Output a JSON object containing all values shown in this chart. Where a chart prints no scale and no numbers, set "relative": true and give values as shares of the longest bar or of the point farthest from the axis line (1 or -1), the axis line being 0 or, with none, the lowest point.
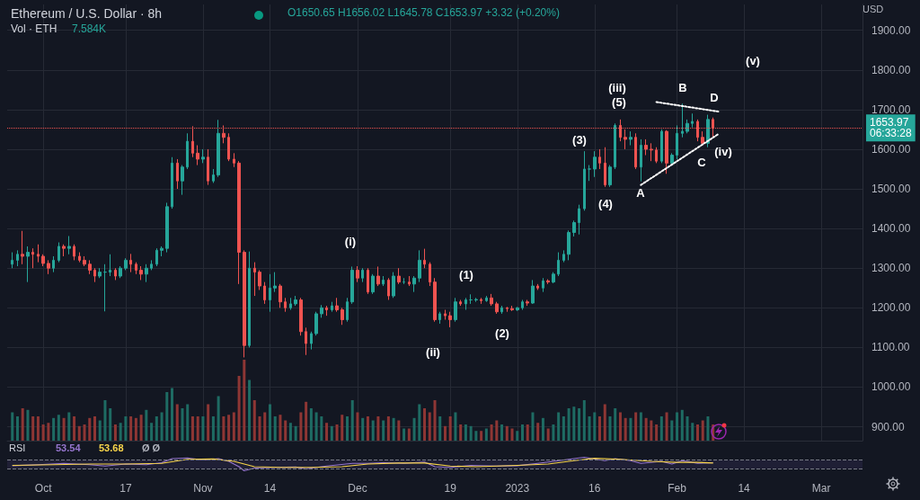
{
  "chart_data": [
    {
      "type": "candlestick",
      "title": "Ethereum / U.S. Dollar · 8h",
      "subtitle": "O1650.65 H1656.02 L1645.78 C1653.97 +3.32 (+0.20%)",
      "ylabel": "USD",
      "grid": true,
      "tick_labels": "y",
      "xlim": [
        "2022-09-24",
        "2023-03-09"
      ],
      "xticks": [
        {
          "value": "2022-10-01",
          "label": null
        },
        {
          "value": "2022-10-17",
          "label": null
        },
        {
          "value": "2022-11-01",
          "label": null
        },
        {
          "value": "2022-11-14",
          "label": null
        },
        {
          "value": "2022-12-01",
          "label": null
        },
        {
          "value": "2022-12-19",
          "label": null
        },
        {
          "value": "2023-01-01",
          "label": null
        },
        {
          "value": "2023-01-16",
          "label": null
        },
        {
          "value": "2023-02-01",
          "label": null
        },
        {
          "value": "2023-02-14",
          "label": null
        },
        {
          "value": "2023-03-01",
          "label": null
        }
      ],
      "ylim": [
        865,
        1965
      ],
      "yticks": [
        {
          "value": 900,
          "label": "900.00"
        },
        {
          "value": 1000,
          "label": "1000.00"
        },
        {
          "value": 1100,
          "label": "1100.00"
        },
        {
          "value": 1200,
          "label": "1200.00"
        },
        {
          "value": 1300,
          "label": "1300.00"
        },
        {
          "value": 1400,
          "label": "1400.00"
        },
        {
          "value": 1500,
          "label": "1500.00"
        },
        {
          "value": 1600,
          "label": "1600.00"
        },
        {
          "value": 1700,
          "label": "1700.00"
        },
        {
          "value": 1800,
          "label": "1800.00"
        },
        {
          "value": 1900,
          "label": "1900.00"
        }
      ],
      "x": [
        "2022-09-25",
        "2022-09-26",
        "2022-09-27",
        "2022-09-28",
        "2022-09-29",
        "2022-09-30",
        "2022-10-01",
        "2022-10-02",
        "2022-10-03",
        "2022-10-04",
        "2022-10-05",
        "2022-10-06",
        "2022-10-07",
        "2022-10-08",
        "2022-10-09",
        "2022-10-10",
        "2022-10-11",
        "2022-10-12",
        "2022-10-13",
        "2022-10-14",
        "2022-10-15",
        "2022-10-16",
        "2022-10-17",
        "2022-10-18",
        "2022-10-19",
        "2022-10-20",
        "2022-10-21",
        "2022-10-22",
        "2022-10-23",
        "2022-10-24",
        "2022-10-25",
        "2022-10-26",
        "2022-10-27",
        "2022-10-28",
        "2022-10-29",
        "2022-10-30",
        "2022-10-31",
        "2022-11-01",
        "2022-11-02",
        "2022-11-03",
        "2022-11-04",
        "2022-11-05",
        "2022-11-06",
        "2022-11-07",
        "2022-11-08",
        "2022-11-09",
        "2022-11-10",
        "2022-11-11",
        "2022-11-12",
        "2022-11-13",
        "2022-11-14",
        "2022-11-15",
        "2022-11-16",
        "2022-11-17",
        "2022-11-18",
        "2022-11-19",
        "2022-11-20",
        "2022-11-21",
        "2022-11-22",
        "2022-11-23",
        "2022-11-24",
        "2022-11-25",
        "2022-11-26",
        "2022-11-27",
        "2022-11-28",
        "2022-11-29",
        "2022-11-30",
        "2022-12-01",
        "2022-12-02",
        "2022-12-03",
        "2022-12-04",
        "2022-12-05",
        "2022-12-06",
        "2022-12-07",
        "2022-12-08",
        "2022-12-09",
        "2022-12-10",
        "2022-12-11",
        "2022-12-12",
        "2022-12-13",
        "2022-12-14",
        "2022-12-15",
        "2022-12-16",
        "2022-12-17",
        "2022-12-18",
        "2022-12-19",
        "2022-12-20",
        "2022-12-21",
        "2022-12-22",
        "2022-12-23",
        "2022-12-24",
        "2022-12-25",
        "2022-12-26",
        "2022-12-27",
        "2022-12-28",
        "2022-12-29",
        "2022-12-30",
        "2022-12-31",
        "2023-01-01",
        "2023-01-02",
        "2023-01-03",
        "2023-01-04",
        "2023-01-05",
        "2023-01-06",
        "2023-01-07",
        "2023-01-08",
        "2023-01-09",
        "2023-01-10",
        "2023-01-11",
        "2023-01-12",
        "2023-01-13",
        "2023-01-14",
        "2023-01-15",
        "2023-01-16",
        "2023-01-17",
        "2023-01-18",
        "2023-01-19",
        "2023-01-20",
        "2023-01-21",
        "2023-01-22",
        "2023-01-23",
        "2023-01-24",
        "2023-01-25",
        "2023-01-26",
        "2023-01-27",
        "2023-01-28",
        "2023-01-29",
        "2023-01-30",
        "2023-01-31",
        "2023-02-01",
        "2023-02-02",
        "2023-02-03",
        "2023-02-04",
        "2023-02-05",
        "2023-02-06",
        "2023-02-07",
        "2023-02-08"
      ],
      "ohlc": [
        [
          1310,
          1340,
          1300,
          1320
        ],
        [
          1320,
          1345,
          1305,
          1335
        ],
        [
          1335,
          1394,
          1310,
          1330
        ],
        [
          1330,
          1355,
          1265,
          1340
        ],
        [
          1340,
          1350,
          1300,
          1335
        ],
        [
          1335,
          1360,
          1315,
          1330
        ],
        [
          1330,
          1335,
          1305,
          1312
        ],
        [
          1312,
          1320,
          1285,
          1300
        ],
        [
          1300,
          1330,
          1290,
          1320
        ],
        [
          1320,
          1365,
          1315,
          1355
        ],
        [
          1355,
          1360,
          1330,
          1350
        ],
        [
          1350,
          1381,
          1335,
          1355
        ],
        [
          1355,
          1360,
          1320,
          1330
        ],
        [
          1330,
          1340,
          1315,
          1320
        ],
        [
          1320,
          1330,
          1305,
          1310
        ],
        [
          1310,
          1320,
          1285,
          1295
        ],
        [
          1295,
          1300,
          1265,
          1280
        ],
        [
          1280,
          1300,
          1275,
          1290
        ],
        [
          1290,
          1310,
          1191,
          1290
        ],
        [
          1290,
          1335,
          1280,
          1295
        ],
        [
          1295,
          1300,
          1270,
          1280
        ],
        [
          1280,
          1305,
          1275,
          1300
        ],
        [
          1300,
          1325,
          1295,
          1320
        ],
        [
          1320,
          1336,
          1290,
          1310
        ],
        [
          1310,
          1315,
          1285,
          1295
        ],
        [
          1295,
          1305,
          1270,
          1285
        ],
        [
          1285,
          1310,
          1265,
          1300
        ],
        [
          1300,
          1320,
          1295,
          1310
        ],
        [
          1310,
          1350,
          1305,
          1345
        ],
        [
          1345,
          1355,
          1330,
          1350
        ],
        [
          1350,
          1465,
          1340,
          1455
        ],
        [
          1455,
          1580,
          1450,
          1565
        ],
        [
          1565,
          1575,
          1500,
          1520
        ],
        [
          1520,
          1560,
          1485,
          1555
        ],
        [
          1555,
          1640,
          1550,
          1620
        ],
        [
          1620,
          1658,
          1580,
          1590
        ],
        [
          1590,
          1610,
          1560,
          1575
        ],
        [
          1575,
          1600,
          1565,
          1580
        ],
        [
          1580,
          1600,
          1510,
          1520
        ],
        [
          1520,
          1550,
          1515,
          1535
        ],
        [
          1535,
          1674,
          1530,
          1640
        ],
        [
          1640,
          1660,
          1615,
          1630
        ],
        [
          1630,
          1640,
          1570,
          1575
        ],
        [
          1575,
          1590,
          1555,
          1565
        ],
        [
          1565,
          1570,
          1260,
          1340
        ],
        [
          1340,
          1345,
          1075,
          1105
        ],
        [
          1105,
          1342,
          1100,
          1300
        ],
        [
          1300,
          1315,
          1230,
          1290
        ],
        [
          1290,
          1295,
          1245,
          1255
        ],
        [
          1255,
          1265,
          1210,
          1220
        ],
        [
          1220,
          1285,
          1190,
          1250
        ],
        [
          1250,
          1290,
          1240,
          1255
        ],
        [
          1255,
          1260,
          1200,
          1215
        ],
        [
          1215,
          1225,
          1190,
          1200
        ],
        [
          1200,
          1225,
          1195,
          1210
        ],
        [
          1210,
          1230,
          1205,
          1220
        ],
        [
          1220,
          1225,
          1130,
          1140
        ],
        [
          1140,
          1150,
          1081,
          1110
        ],
        [
          1110,
          1140,
          1095,
          1135
        ],
        [
          1135,
          1190,
          1130,
          1185
        ],
        [
          1185,
          1207,
          1175,
          1200
        ],
        [
          1200,
          1205,
          1180,
          1195
        ],
        [
          1195,
          1215,
          1190,
          1205
        ],
        [
          1205,
          1225,
          1190,
          1195
        ],
        [
          1195,
          1200,
          1157,
          1170
        ],
        [
          1170,
          1225,
          1165,
          1215
        ],
        [
          1215,
          1304,
          1210,
          1295
        ],
        [
          1295,
          1305,
          1265,
          1275
        ],
        [
          1275,
          1300,
          1265,
          1295
        ],
        [
          1295,
          1300,
          1235,
          1240
        ],
        [
          1240,
          1285,
          1235,
          1280
        ],
        [
          1280,
          1304,
          1255,
          1260
        ],
        [
          1260,
          1280,
          1255,
          1270
        ],
        [
          1270,
          1275,
          1220,
          1230
        ],
        [
          1230,
          1290,
          1225,
          1280
        ],
        [
          1280,
          1300,
          1260,
          1265
        ],
        [
          1265,
          1275,
          1260,
          1265
        ],
        [
          1265,
          1280,
          1255,
          1260
        ],
        [
          1260,
          1280,
          1240,
          1275
        ],
        [
          1275,
          1345,
          1265,
          1320
        ],
        [
          1320,
          1349,
          1300,
          1310
        ],
        [
          1310,
          1315,
          1255,
          1265
        ],
        [
          1265,
          1275,
          1165,
          1170
        ],
        [
          1170,
          1190,
          1160,
          1185
        ],
        [
          1185,
          1195,
          1170,
          1180
        ],
        [
          1180,
          1190,
          1151,
          1170
        ],
        [
          1170,
          1225,
          1165,
          1215
        ],
        [
          1215,
          1220,
          1205,
          1210
        ],
        [
          1210,
          1225,
          1195,
          1220
        ],
        [
          1220,
          1234,
          1210,
          1220
        ],
        [
          1220,
          1225,
          1215,
          1221
        ],
        [
          1221,
          1225,
          1210,
          1218
        ],
        [
          1218,
          1230,
          1215,
          1225
        ],
        [
          1225,
          1235,
          1205,
          1210
        ],
        [
          1210,
          1215,
          1185,
          1190
        ],
        [
          1190,
          1205,
          1185,
          1200
        ],
        [
          1200,
          1202,
          1190,
          1198
        ],
        [
          1198,
          1205,
          1192,
          1195
        ],
        [
          1195,
          1202,
          1192,
          1200
        ],
        [
          1200,
          1220,
          1195,
          1215
        ],
        [
          1215,
          1220,
          1205,
          1212
        ],
        [
          1212,
          1270,
          1210,
          1255
        ],
        [
          1255,
          1260,
          1245,
          1250
        ],
        [
          1250,
          1275,
          1240,
          1268
        ],
        [
          1268,
          1272,
          1260,
          1265
        ],
        [
          1265,
          1290,
          1262,
          1285
        ],
        [
          1285,
          1340,
          1280,
          1320
        ],
        [
          1320,
          1345,
          1315,
          1335
        ],
        [
          1335,
          1395,
          1320,
          1390
        ],
        [
          1390,
          1420,
          1380,
          1415
        ],
        [
          1415,
          1460,
          1385,
          1450
        ],
        [
          1450,
          1595,
          1445,
          1550
        ],
        [
          1550,
          1560,
          1520,
          1550
        ],
        [
          1550,
          1595,
          1530,
          1580
        ],
        [
          1580,
          1600,
          1550,
          1565
        ],
        [
          1565,
          1605,
          1505,
          1510
        ],
        [
          1510,
          1560,
          1505,
          1555
        ],
        [
          1555,
          1665,
          1550,
          1660
        ],
        [
          1660,
          1675,
          1620,
          1630
        ],
        [
          1630,
          1650,
          1600,
          1625
        ],
        [
          1625,
          1645,
          1610,
          1630
        ],
        [
          1630,
          1640,
          1550,
          1555
        ],
        [
          1555,
          1625,
          1519,
          1610
        ],
        [
          1610,
          1625,
          1585,
          1600
        ],
        [
          1600,
          1615,
          1570,
          1598
        ],
        [
          1598,
          1605,
          1565,
          1570
        ],
        [
          1570,
          1650,
          1565,
          1645
        ],
        [
          1645,
          1648,
          1538,
          1565
        ],
        [
          1565,
          1590,
          1560,
          1585
        ],
        [
          1585,
          1660,
          1575,
          1640
        ],
        [
          1640,
          1715,
          1630,
          1645
        ],
        [
          1645,
          1675,
          1640,
          1665
        ],
        [
          1665,
          1690,
          1655,
          1670
        ],
        [
          1670,
          1675,
          1620,
          1630
        ],
        [
          1630,
          1645,
          1613,
          1615
        ],
        [
          1615,
          1687,
          1605,
          1675
        ],
        [
          1675,
          1680,
          1630,
          1653.97
        ]
      ],
      "colors": [
        "#26a69a",
        "#26a69a",
        "#ef5350",
        "#26a69a",
        "#ef5350",
        "#ef5350",
        "#ef5350",
        "#ef5350",
        "#26a69a",
        "#26a69a",
        "#ef5350",
        "#26a69a",
        "#ef5350",
        "#ef5350",
        "#ef5350",
        "#ef5350",
        "#ef5350",
        "#26a69a",
        "#26a69a",
        "#26a69a",
        "#ef5350",
        "#26a69a",
        "#26a69a",
        "#ef5350",
        "#ef5350",
        "#ef5350",
        "#26a69a",
        "#26a69a",
        "#26a69a",
        "#26a69a",
        "#26a69a",
        "#26a69a",
        "#ef5350",
        "#26a69a",
        "#26a69a",
        "#ef5350",
        "#ef5350",
        "#26a69a",
        "#ef5350",
        "#26a69a",
        "#26a69a",
        "#ef5350",
        "#ef5350",
        "#ef5350",
        "#ef5350",
        "#ef5350",
        "#26a69a",
        "#ef5350",
        "#ef5350",
        "#ef5350",
        "#26a69a",
        "#26a69a",
        "#ef5350",
        "#ef5350",
        "#26a69a",
        "#26a69a",
        "#ef5350",
        "#ef5350",
        "#26a69a",
        "#26a69a",
        "#26a69a",
        "#ef5350",
        "#26a69a",
        "#ef5350",
        "#ef5350",
        "#26a69a",
        "#26a69a",
        "#ef5350",
        "#26a69a",
        "#ef5350",
        "#26a69a",
        "#ef5350",
        "#26a69a",
        "#ef5350",
        "#26a69a",
        "#ef5350",
        "#26a69a",
        "#ef5350",
        "#26a69a",
        "#26a69a",
        "#ef5350",
        "#ef5350",
        "#ef5350",
        "#26a69a",
        "#ef5350",
        "#ef5350",
        "#26a69a",
        "#ef5350",
        "#26a69a",
        "#26a69a",
        "#26a69a",
        "#ef5350",
        "#26a69a",
        "#ef5350",
        "#ef5350",
        "#26a69a",
        "#ef5350",
        "#ef5350",
        "#26a69a",
        "#26a69a",
        "#ef5350",
        "#26a69a",
        "#ef5350",
        "#26a69a",
        "#ef5350",
        "#26a69a",
        "#26a69a",
        "#26a69a",
        "#26a69a",
        "#26a69a",
        "#26a69a",
        "#26a69a",
        "#26a69a",
        "#26a69a",
        "#ef5350",
        "#ef5350",
        "#26a69a",
        "#26a69a",
        "#ef5350",
        "#ef5350",
        "#26a69a",
        "#ef5350",
        "#26a69a",
        "#ef5350",
        "#ef5350",
        "#ef5350",
        "#26a69a",
        "#ef5350",
        "#26a69a",
        "#26a69a",
        "#26a69a",
        "#26a69a",
        "#26a69a",
        "#ef5350",
        "#ef5350",
        "#26a69a",
        "#ef5350"
      ],
      "series": [
        {
          "type": "line",
          "color": "#ffffff",
          "line_style": "dotted",
          "x": [
            "2023-01-28",
            "2023-02-09"
          ],
          "values": [
            1719,
            1695
          ]
        },
        {
          "type": "line",
          "color": "#ffffff",
          "line_style": "dotted",
          "x": [
            "2023-01-25",
            "2023-02-09"
          ],
          "values": [
            1510,
            1638
          ]
        }
      ],
      "ref_lines": [
        {
          "axis": "y",
          "value": 1653.97,
          "label": "1653.97\n06:33:28",
          "color": "#ef5350",
          "line_style": "dotted"
        }
      ],
      "annotations": [
        "(i)",
        "(ii)",
        "(1)",
        "(2)",
        "(3)",
        "(4)",
        "(iii)",
        "(5)",
        "A",
        "B",
        "C",
        "D",
        "(iv)",
        "(v)"
      ]
    },
    {
      "type": "bar",
      "relative": true,
      "title": "Vol · ETH",
      "annotations": [
        "7.584K"
      ],
      "tick_labels": false,
      "xlim": [
        "2022-09-24",
        "2023-03-09"
      ],
      "x": [
        "2022-09-25",
        "2022-09-26",
        "2022-09-27",
        "2022-09-28",
        "2022-09-29",
        "2022-09-30",
        "2022-10-01",
        "2022-10-02",
        "2022-10-03",
        "2022-10-04",
        "2022-10-05",
        "2022-10-06",
        "2022-10-07",
        "2022-10-08",
        "2022-10-09",
        "2022-10-10",
        "2022-10-11",
        "2022-10-12",
        "2022-10-13",
        "2022-10-14",
        "2022-10-15",
        "2022-10-16",
        "2022-10-17",
        "2022-10-18",
        "2022-10-19",
        "2022-10-20",
        "2022-10-21",
        "2022-10-22",
        "2022-10-23",
        "2022-10-24",
        "2022-10-25",
        "2022-10-26",
        "2022-10-27",
        "2022-10-28",
        "2022-10-29",
        "2022-10-30",
        "2022-10-31",
        "2022-11-01",
        "2022-11-02",
        "2022-11-03",
        "2022-11-04",
        "2022-11-05",
        "2022-11-06",
        "2022-11-07",
        "2022-11-08",
        "2022-11-09",
        "2022-11-10",
        "2022-11-11",
        "2022-11-12",
        "2022-11-13",
        "2022-11-14",
        "2022-11-15",
        "2022-11-16",
        "2022-11-17",
        "2022-11-18",
        "2022-11-19",
        "2022-11-20",
        "2022-11-21",
        "2022-11-22",
        "2022-11-23",
        "2022-11-24",
        "2022-11-25",
        "2022-11-26",
        "2022-11-27",
        "2022-11-28",
        "2022-11-29",
        "2022-11-30",
        "2022-12-01",
        "2022-12-02",
        "2022-12-03",
        "2022-12-04",
        "2022-12-05",
        "2022-12-06",
        "2022-12-07",
        "2022-12-08",
        "2022-12-09",
        "2022-12-10",
        "2022-12-11",
        "2022-12-12",
        "2022-12-13",
        "2022-12-14",
        "2022-12-15",
        "2022-12-16",
        "2022-12-17",
        "2022-12-18",
        "2022-12-19",
        "2022-12-20",
        "2022-12-21",
        "2022-12-22",
        "2022-12-23",
        "2022-12-24",
        "2022-12-25",
        "2022-12-26",
        "2022-12-27",
        "2022-12-28",
        "2022-12-29",
        "2022-12-30",
        "2022-12-31",
        "2023-01-01",
        "2023-01-02",
        "2023-01-03",
        "2023-01-04",
        "2023-01-05",
        "2023-01-06",
        "2023-01-07",
        "2023-01-08",
        "2023-01-09",
        "2023-01-10",
        "2023-01-11",
        "2023-01-12",
        "2023-01-13",
        "2023-01-14",
        "2023-01-15",
        "2023-01-16",
        "2023-01-17",
        "2023-01-18",
        "2023-01-19",
        "2023-01-20",
        "2023-01-21",
        "2023-01-22",
        "2023-01-23",
        "2023-01-24",
        "2023-01-25",
        "2023-01-26",
        "2023-01-27",
        "2023-01-28",
        "2023-01-29",
        "2023-01-30",
        "2023-01-31",
        "2023-02-01",
        "2023-02-02",
        "2023-02-03",
        "2023-02-04",
        "2023-02-05",
        "2023-02-06",
        "2023-02-07",
        "2023-02-08"
      ],
      "values": [
        0.35,
        0.3,
        0.4,
        0.38,
        0.3,
        0.3,
        0.2,
        0.22,
        0.28,
        0.32,
        0.28,
        0.35,
        0.3,
        0.18,
        0.2,
        0.28,
        0.3,
        0.25,
        0.5,
        0.4,
        0.2,
        0.22,
        0.3,
        0.3,
        0.28,
        0.32,
        0.38,
        0.22,
        0.3,
        0.35,
        0.6,
        0.65,
        0.45,
        0.4,
        0.45,
        0.3,
        0.3,
        0.3,
        0.45,
        0.3,
        0.55,
        0.3,
        0.32,
        0.35,
        0.8,
        1,
        0.75,
        0.5,
        0.3,
        0.35,
        0.45,
        0.3,
        0.32,
        0.25,
        0.22,
        0.18,
        0.35,
        0.48,
        0.4,
        0.35,
        0.3,
        0.22,
        0.18,
        0.2,
        0.32,
        0.3,
        0.5,
        0.35,
        0.28,
        0.3,
        0.25,
        0.3,
        0.25,
        0.3,
        0.28,
        0.25,
        0.15,
        0.15,
        0.28,
        0.45,
        0.4,
        0.35,
        0.5,
        0.3,
        0.18,
        0.3,
        0.35,
        0.2,
        0.2,
        0.18,
        0.12,
        0.12,
        0.15,
        0.2,
        0.25,
        0.2,
        0.18,
        0.15,
        0.12,
        0.2,
        0.2,
        0.35,
        0.22,
        0.28,
        0.15,
        0.2,
        0.35,
        0.3,
        0.4,
        0.42,
        0.4,
        0.5,
        0.3,
        0.35,
        0.3,
        0.45,
        0.3,
        0.4,
        0.35,
        0.28,
        0.28,
        0.35,
        0.35,
        0.28,
        0.25,
        0.2,
        0.3,
        0.35,
        0.25,
        0.35,
        0.38,
        0.3,
        0.22,
        0.2,
        0.25,
        0.3,
        0.2
      ],
      "colors": [
        "#1e6b63",
        "#1e6b63",
        "#8e3634",
        "#1e6b63",
        "#8e3634",
        "#8e3634",
        "#8e3634",
        "#8e3634",
        "#1e6b63",
        "#1e6b63",
        "#8e3634",
        "#1e6b63",
        "#8e3634",
        "#8e3634",
        "#8e3634",
        "#8e3634",
        "#8e3634",
        "#1e6b63",
        "#1e6b63",
        "#1e6b63",
        "#8e3634",
        "#1e6b63",
        "#1e6b63",
        "#8e3634",
        "#8e3634",
        "#8e3634",
        "#1e6b63",
        "#1e6b63",
        "#1e6b63",
        "#1e6b63",
        "#1e6b63",
        "#1e6b63",
        "#8e3634",
        "#1e6b63",
        "#1e6b63",
        "#8e3634",
        "#8e3634",
        "#1e6b63",
        "#8e3634",
        "#1e6b63",
        "#1e6b63",
        "#8e3634",
        "#8e3634",
        "#8e3634",
        "#8e3634",
        "#8e3634",
        "#1e6b63",
        "#8e3634",
        "#8e3634",
        "#8e3634",
        "#1e6b63",
        "#1e6b63",
        "#8e3634",
        "#8e3634",
        "#1e6b63",
        "#1e6b63",
        "#8e3634",
        "#8e3634",
        "#1e6b63",
        "#1e6b63",
        "#1e6b63",
        "#8e3634",
        "#1e6b63",
        "#8e3634",
        "#8e3634",
        "#1e6b63",
        "#1e6b63",
        "#8e3634",
        "#1e6b63",
        "#8e3634",
        "#1e6b63",
        "#8e3634",
        "#1e6b63",
        "#8e3634",
        "#1e6b63",
        "#8e3634",
        "#1e6b63",
        "#8e3634",
        "#1e6b63",
        "#1e6b63",
        "#8e3634",
        "#8e3634",
        "#8e3634",
        "#1e6b63",
        "#8e3634",
        "#8e3634",
        "#1e6b63",
        "#8e3634",
        "#1e6b63",
        "#1e6b63",
        "#1e6b63",
        "#8e3634",
        "#1e6b63",
        "#8e3634",
        "#8e3634",
        "#1e6b63",
        "#8e3634",
        "#8e3634",
        "#1e6b63",
        "#1e6b63",
        "#8e3634",
        "#1e6b63",
        "#8e3634",
        "#1e6b63",
        "#8e3634",
        "#1e6b63",
        "#1e6b63",
        "#1e6b63",
        "#1e6b63",
        "#1e6b63",
        "#1e6b63",
        "#1e6b63",
        "#1e6b63",
        "#1e6b63",
        "#8e3634",
        "#8e3634",
        "#1e6b63",
        "#1e6b63",
        "#8e3634",
        "#8e3634",
        "#1e6b63",
        "#8e3634",
        "#1e6b63",
        "#8e3634",
        "#8e3634",
        "#8e3634",
        "#1e6b63",
        "#8e3634",
        "#1e6b63",
        "#1e6b63",
        "#1e6b63",
        "#1e6b63",
        "#1e6b63",
        "#8e3634",
        "#8e3634",
        "#1e6b63",
        "#8e3634"
      ]
    },
    {
      "type": "line",
      "relative": true,
      "title": "RSI",
      "annotations": [
        "53.54",
        "53.68",
        "Ø Ø"
      ],
      "tick_labels": "x",
      "xlim": [
        "2022-09-24",
        "2023-03-09"
      ],
      "xticks": [
        {
          "value": "2022-10-01",
          "label": "Oct"
        },
        {
          "value": "2022-10-17",
          "label": "17"
        },
        {
          "value": "2022-11-01",
          "label": "Nov"
        },
        {
          "value": "2022-11-14",
          "label": "14"
        },
        {
          "value": "2022-12-01",
          "label": "Dec"
        },
        {
          "value": "2022-12-19",
          "label": "19"
        },
        {
          "value": "2023-01-01",
          "label": "2023"
        },
        {
          "value": "2023-01-16",
          "label": "16"
        },
        {
          "value": "2023-02-01",
          "label": "Feb"
        },
        {
          "value": "2023-02-14",
          "label": "14"
        },
        {
          "value": "2023-03-01",
          "label": "Mar"
        }
      ],
      "bands": [
        {
          "axis": "y",
          "from": 0.14,
          "to": 0.8,
          "color": "#7e57c2"
        }
      ],
      "ref_lines": [
        {
          "axis": "y",
          "value": 0.14,
          "color": "#787b86",
          "line_style": "dashed"
        },
        {
          "axis": "y",
          "value": 0.8,
          "color": "#787b86",
          "line_style": "dashed"
        }
      ],
      "series": [
        {
          "color": "#9575cd",
          "x": [
            "2022-09-25",
            "2022-09-30",
            "2022-10-05",
            "2022-10-10",
            "2022-10-13",
            "2022-10-17",
            "2022-10-21",
            "2022-10-24",
            "2022-10-26",
            "2022-10-29",
            "2022-11-01",
            "2022-11-04",
            "2022-11-06",
            "2022-11-08",
            "2022-11-09",
            "2022-11-11",
            "2022-11-15",
            "2022-11-19",
            "2022-11-21",
            "2022-11-25",
            "2022-11-30",
            "2022-12-03",
            "2022-12-06",
            "2022-12-10",
            "2022-12-14",
            "2022-12-16",
            "2022-12-19",
            "2022-12-23",
            "2022-12-28",
            "2023-01-01",
            "2023-01-05",
            "2023-01-09",
            "2023-01-12",
            "2023-01-14",
            "2023-01-18",
            "2023-01-20",
            "2023-01-23",
            "2023-01-25",
            "2023-01-29",
            "2023-01-31",
            "2023-02-02",
            "2023-02-05",
            "2023-02-08"
          ],
          "values": [
            0.37,
            0.45,
            0.55,
            0.45,
            0.35,
            0.5,
            0.45,
            0.6,
            0.9,
            0.95,
            0.8,
            0.9,
            0.7,
            0.3,
            0,
            0.2,
            0.25,
            0.28,
            0.15,
            0.35,
            0.55,
            0.55,
            0.6,
            0.55,
            0.65,
            0.3,
            0.25,
            0.4,
            0.35,
            0.38,
            0.55,
            0.75,
            0.9,
            1,
            0.75,
            0.9,
            0.75,
            0.55,
            0.7,
            0.5,
            0.75,
            0.55,
            0.6
          ]
        },
        {
          "color": "#f7d44a",
          "x": [
            "2022-09-25",
            "2022-10-03",
            "2022-10-10",
            "2022-10-17",
            "2022-10-24",
            "2022-10-29",
            "2022-11-03",
            "2022-11-07",
            "2022-11-11",
            "2022-11-16",
            "2022-11-22",
            "2022-11-28",
            "2022-12-03",
            "2022-12-09",
            "2022-12-14",
            "2022-12-19",
            "2022-12-24",
            "2023-01-01",
            "2023-01-07",
            "2023-01-12",
            "2023-01-16",
            "2023-01-21",
            "2023-01-27",
            "2023-02-01",
            "2023-02-05",
            "2023-02-08"
          ],
          "values": [
            0.4,
            0.45,
            0.5,
            0.5,
            0.55,
            0.85,
            0.88,
            0.7,
            0.3,
            0.25,
            0.25,
            0.3,
            0.5,
            0.58,
            0.58,
            0.35,
            0.3,
            0.4,
            0.5,
            0.75,
            0.92,
            0.85,
            0.7,
            0.62,
            0.62,
            0.58
          ]
        }
      ]
    }
  ]
}
